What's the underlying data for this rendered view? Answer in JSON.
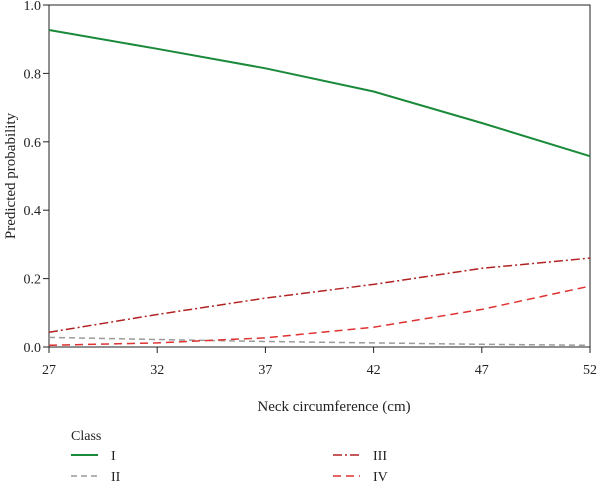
{
  "chart_data": {
    "type": "line",
    "xlabel": "Neck circumference (cm)",
    "ylabel": "Predicted probability",
    "x": [
      27,
      32,
      37,
      42,
      47,
      52
    ],
    "x_ticks": [
      "27",
      "32",
      "37",
      "42",
      "47",
      "52"
    ],
    "y_ticks": [
      "0.0",
      "0.2",
      "0.4",
      "0.6",
      "0.8",
      "1.0"
    ],
    "xlim": [
      27,
      52
    ],
    "ylim": [
      0,
      1
    ],
    "grid": false,
    "legend_title": "Class",
    "legend_position": "bottom",
    "series": [
      {
        "name": "I",
        "color": "#1a8a3a",
        "dash": "solid",
        "values": [
          0.927,
          0.872,
          0.815,
          0.747,
          0.655,
          0.558
        ]
      },
      {
        "name": "II",
        "color": "#9a9a9a",
        "dash": "dashed",
        "values": [
          0.028,
          0.022,
          0.016,
          0.012,
          0.008,
          0.005
        ]
      },
      {
        "name": "III",
        "color": "#b22222",
        "dash": "dashdot",
        "values": [
          0.043,
          0.095,
          0.143,
          0.183,
          0.23,
          0.26
        ]
      },
      {
        "name": "IV",
        "color": "#e03030",
        "dash": "longdash",
        "values": [
          0.005,
          0.012,
          0.027,
          0.058,
          0.11,
          0.178
        ]
      }
    ]
  }
}
